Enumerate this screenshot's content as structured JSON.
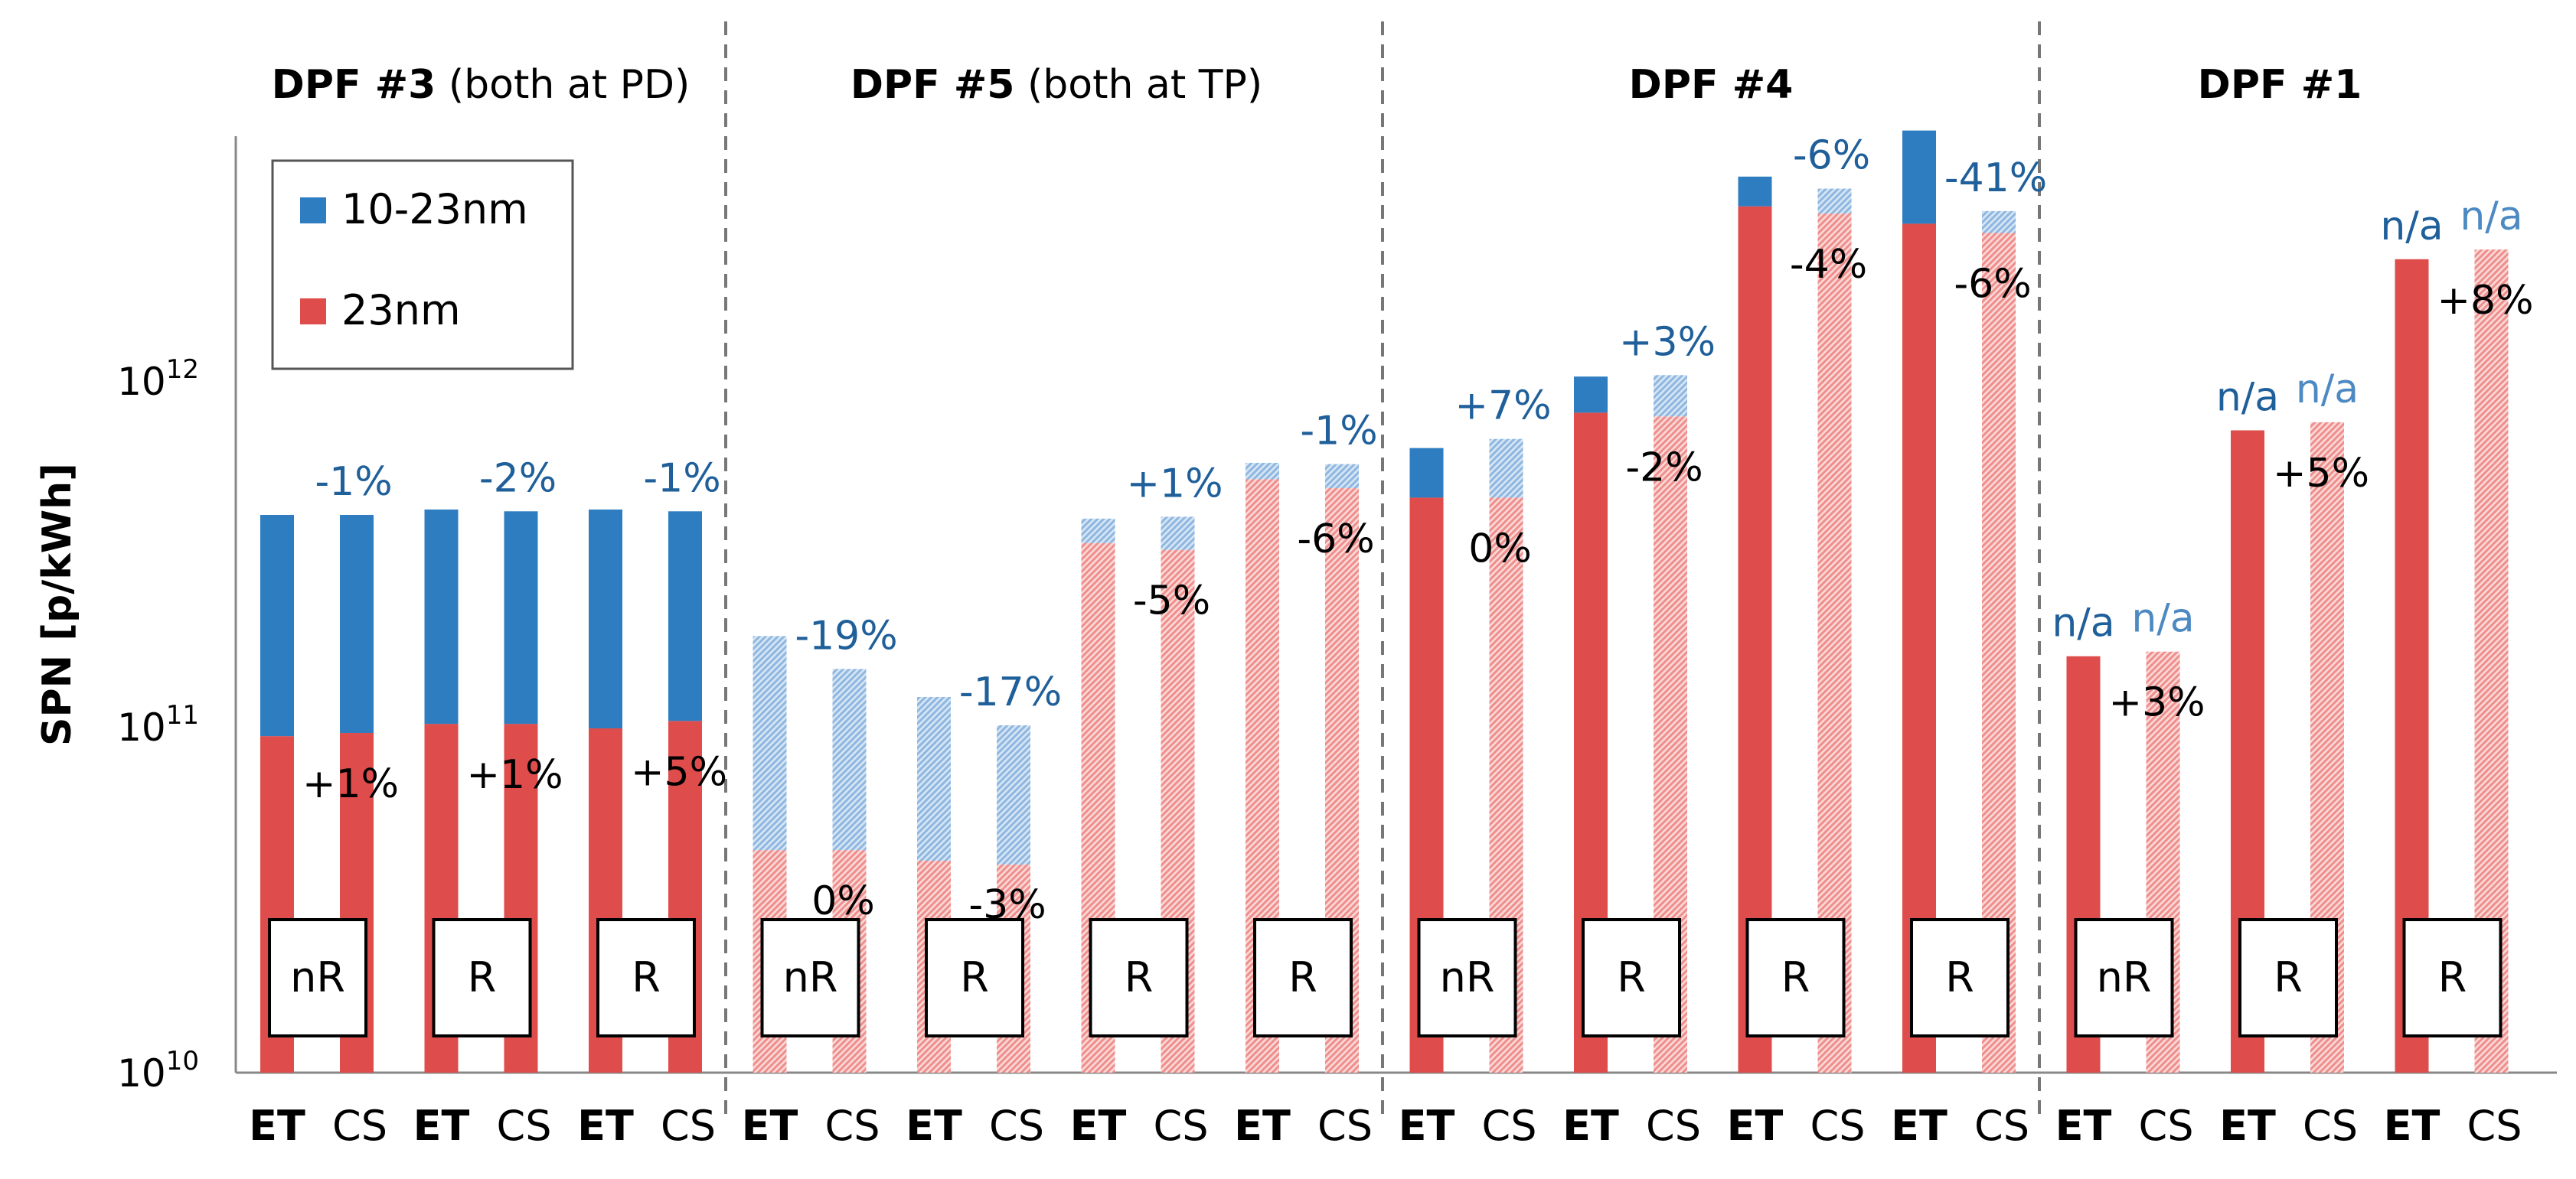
{
  "chart_data": {
    "type": "bar",
    "stacked": true,
    "ylabel": "SPN [p/kWh]",
    "yscale": "log",
    "ylim": [
      10000000000.0,
      6000000000000.0
    ],
    "y_ticks": [
      {
        "base": "10",
        "exp": "10",
        "value": 10000000000.0
      },
      {
        "base": "10",
        "exp": "11",
        "value": 100000000000.0
      },
      {
        "base": "10",
        "exp": "12",
        "value": 1000000000000.0
      }
    ],
    "legend": {
      "position": "top-left",
      "entries": [
        {
          "label": "10-23nm",
          "color": "#2e7dc1"
        },
        {
          "label": "23nm",
          "color": "#de4d4b"
        }
      ]
    },
    "colors": {
      "blue": "#2e7dc1",
      "red": "#de4d4b",
      "blue_light": "#a9c8e8",
      "red_light": "#f4b6b4",
      "pct_dark": "#1f5f9a",
      "pct_light": "#4d89c2"
    },
    "groups": [
      {
        "title_bold": "DPF #3",
        "title_normal": " (both at PD)",
        "pairs": [
          {
            "badge": "nR",
            "ET": {
              "total": 410000000000.0,
              "lower": 94000000000.0
            },
            "CS": {
              "total": 410000000000.0,
              "lower": 96000000000.0,
              "style": "solid"
            },
            "top_pct": "-1%",
            "low_pct": "+1%"
          },
          {
            "badge": "R",
            "ET": {
              "total": 425000000000.0,
              "lower": 102000000000.0
            },
            "CS": {
              "total": 420000000000.0,
              "lower": 102000000000.0,
              "style": "solid"
            },
            "top_pct": "-2%",
            "low_pct": "+1%"
          },
          {
            "badge": "R",
            "ET": {
              "total": 425000000000.0,
              "lower": 99000000000.0
            },
            "CS": {
              "total": 420000000000.0,
              "lower": 104000000000.0,
              "style": "solid"
            },
            "top_pct": "-1%",
            "low_pct": "+5%"
          }
        ]
      },
      {
        "title_bold": "DPF #5",
        "title_normal": " (both at TP)",
        "pairs": [
          {
            "badge": "nR",
            "ET": {
              "total": 183000000000.0,
              "lower": 44000000000.0,
              "style": "hatched"
            },
            "CS": {
              "total": 147000000000.0,
              "lower": 44000000000.0,
              "style": "hatched"
            },
            "top_pct": "-19%",
            "low_pct": "0%"
          },
          {
            "badge": "R",
            "ET": {
              "total": 122000000000.0,
              "lower": 41000000000.0,
              "style": "hatched"
            },
            "CS": {
              "total": 101000000000.0,
              "lower": 40000000000.0,
              "style": "hatched"
            },
            "top_pct": "-17%",
            "low_pct": "-3%"
          },
          {
            "badge": "R",
            "ET": {
              "total": 400000000000.0,
              "lower": 340000000000.0,
              "style": "hatched"
            },
            "CS": {
              "total": 405000000000.0,
              "lower": 325000000000.0,
              "style": "hatched"
            },
            "top_pct": "+1%",
            "low_pct": "-5%"
          },
          {
            "badge": "R",
            "ET": {
              "total": 580000000000.0,
              "lower": 520000000000.0,
              "style": "hatched"
            },
            "CS": {
              "total": 575000000000.0,
              "lower": 490000000000.0,
              "style": "hatched"
            },
            "top_pct": "-1%",
            "low_pct": "-6%"
          }
        ]
      },
      {
        "title_bold": "DPF #4",
        "title_normal": "",
        "pairs": [
          {
            "badge": "nR",
            "ET": {
              "total": 640000000000.0,
              "lower": 460000000000.0
            },
            "CS": {
              "total": 680000000000.0,
              "lower": 460000000000.0,
              "style": "hatched"
            },
            "top_pct": "+7%",
            "low_pct": "0%"
          },
          {
            "badge": "R",
            "ET": {
              "total": 1030000000000.0,
              "lower": 810000000000.0
            },
            "CS": {
              "total": 1040000000000.0,
              "lower": 790000000000.0,
              "style": "hatched"
            },
            "top_pct": "+3%",
            "low_pct": "-2%"
          },
          {
            "badge": "R",
            "ET": {
              "total": 3900000000000.0,
              "lower": 3200000000000.0
            },
            "CS": {
              "total": 3600000000000.0,
              "lower": 3050000000000.0,
              "style": "hatched"
            },
            "top_pct": "-6%",
            "low_pct": "-4%"
          },
          {
            "badge": "R",
            "ET": {
              "total": 5300000000000.0,
              "lower": 2850000000000.0
            },
            "CS": {
              "total": 3100000000000.0,
              "lower": 2680000000000.0,
              "style": "hatched"
            },
            "top_pct": "-41%",
            "low_pct": "-6%"
          }
        ]
      },
      {
        "title_bold": "DPF #1",
        "title_normal": "",
        "pairs": [
          {
            "badge": "nR",
            "ET": {
              "total": 160000000000.0,
              "lower": 160000000000.0
            },
            "CS": {
              "total": 165000000000.0,
              "lower": 165000000000.0,
              "style": "hatched"
            },
            "top_pct": "n/a",
            "low_pct": "+3%"
          },
          {
            "badge": "R",
            "ET": {
              "total": 720000000000.0,
              "lower": 720000000000.0
            },
            "CS": {
              "total": 760000000000.0,
              "lower": 760000000000.0,
              "style": "hatched"
            },
            "top_pct": "n/a",
            "low_pct": "+5%"
          },
          {
            "badge": "R",
            "ET": {
              "total": 2250000000000.0,
              "lower": 2250000000000.0
            },
            "CS": {
              "total": 2400000000000.0,
              "lower": 2400000000000.0,
              "style": "hatched"
            },
            "top_pct": "n/a",
            "low_pct": "+8%"
          }
        ]
      }
    ],
    "x_tick_labels": {
      "et": "ET",
      "cs": "CS"
    }
  }
}
